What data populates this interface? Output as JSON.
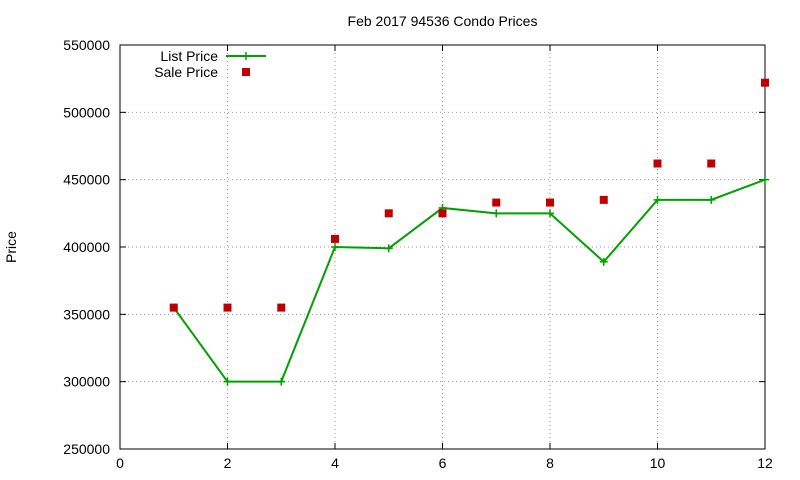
{
  "chart_data": {
    "type": "line",
    "title": "Feb 2017 94536 Condo Prices",
    "xlabel": "",
    "ylabel": "Price",
    "xlim": [
      0,
      12
    ],
    "ylim": [
      250000,
      550000
    ],
    "xticks": [
      0,
      2,
      4,
      6,
      8,
      10,
      12
    ],
    "yticks": [
      250000,
      300000,
      350000,
      400000,
      450000,
      500000,
      550000
    ],
    "grid": true,
    "legend_position": "top-left",
    "series": [
      {
        "name": "List Price",
        "style": "linespoints",
        "marker": "plus",
        "color": "#00a000",
        "points": [
          {
            "x": 1,
            "y": 355000
          },
          {
            "x": 2,
            "y": 300000
          },
          {
            "x": 3,
            "y": 300000
          },
          {
            "x": 4,
            "y": 400000
          },
          {
            "x": 5,
            "y": 399000
          },
          {
            "x": 6,
            "y": 429000
          },
          {
            "x": 7,
            "y": 425000
          },
          {
            "x": 8,
            "y": 425000
          },
          {
            "x": 9,
            "y": 389000
          },
          {
            "x": 10,
            "y": 435000
          },
          {
            "x": 11,
            "y": 435000
          },
          {
            "x": 12,
            "y": 450000
          }
        ]
      },
      {
        "name": "Sale Price",
        "style": "points",
        "marker": "square",
        "color": "#c00000",
        "points": [
          {
            "x": 1,
            "y": 355000
          },
          {
            "x": 2,
            "y": 355000
          },
          {
            "x": 3,
            "y": 355000
          },
          {
            "x": 4,
            "y": 406000
          },
          {
            "x": 5,
            "y": 425000
          },
          {
            "x": 6,
            "y": 425000
          },
          {
            "x": 7,
            "y": 433000
          },
          {
            "x": 8,
            "y": 433000
          },
          {
            "x": 9,
            "y": 435000
          },
          {
            "x": 10,
            "y": 462000
          },
          {
            "x": 11,
            "y": 462000
          },
          {
            "x": 12,
            "y": 522000
          }
        ]
      }
    ]
  }
}
